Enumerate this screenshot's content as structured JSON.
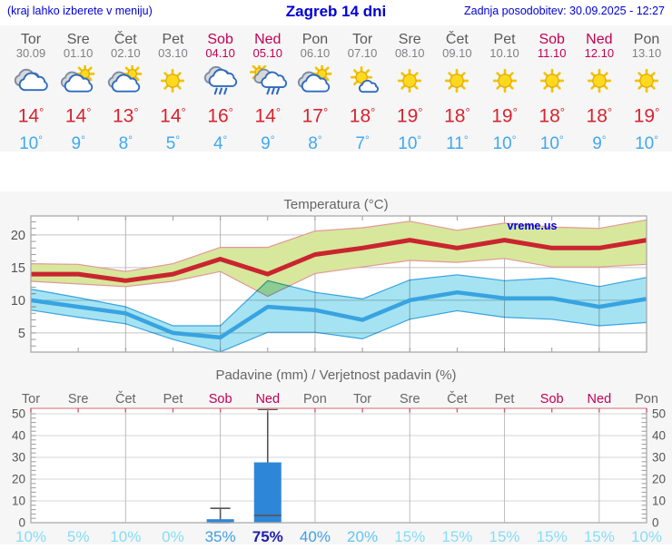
{
  "header": {
    "location_hint": "(kraj lahko izberete v meniju)",
    "title": "Zagreb 14 dni",
    "updated": "Zadnja posodobitev: 30.09.2025 - 12:27"
  },
  "forecast": {
    "days": [
      {
        "day": "Tor",
        "date": "30.09",
        "weekend": false,
        "icon": "cloudy",
        "tmax": 14,
        "tmin": 10
      },
      {
        "day": "Sre",
        "date": "01.10",
        "weekend": false,
        "icon": "partly-cloudy",
        "tmax": 14,
        "tmin": 9
      },
      {
        "day": "Čet",
        "date": "02.10",
        "weekend": false,
        "icon": "partly-cloudy",
        "tmax": 13,
        "tmin": 8
      },
      {
        "day": "Pet",
        "date": "03.10",
        "weekend": false,
        "icon": "sunny",
        "tmax": 14,
        "tmin": 5
      },
      {
        "day": "Sob",
        "date": "04.10",
        "weekend": true,
        "icon": "rain",
        "tmax": 16,
        "tmin": 4
      },
      {
        "day": "Ned",
        "date": "05.10",
        "weekend": true,
        "icon": "sun-rain",
        "tmax": 14,
        "tmin": 9
      },
      {
        "day": "Pon",
        "date": "06.10",
        "weekend": false,
        "icon": "partly-cloudy",
        "tmax": 17,
        "tmin": 8
      },
      {
        "day": "Tor",
        "date": "07.10",
        "weekend": false,
        "icon": "mostly-sunny",
        "tmax": 18,
        "tmin": 7
      },
      {
        "day": "Sre",
        "date": "08.10",
        "weekend": false,
        "icon": "sunny",
        "tmax": 19,
        "tmin": 10
      },
      {
        "day": "Čet",
        "date": "09.10",
        "weekend": false,
        "icon": "sunny",
        "tmax": 18,
        "tmin": 11
      },
      {
        "day": "Pet",
        "date": "10.10",
        "weekend": false,
        "icon": "sunny",
        "tmax": 19,
        "tmin": 10
      },
      {
        "day": "Sob",
        "date": "11.10",
        "weekend": true,
        "icon": "sunny",
        "tmax": 18,
        "tmin": 10
      },
      {
        "day": "Ned",
        "date": "12.10",
        "weekend": true,
        "icon": "sunny",
        "tmax": 18,
        "tmin": 9
      },
      {
        "day": "Pon",
        "date": "13.10",
        "weekend": false,
        "icon": "sunny",
        "tmax": 19,
        "tmin": 10
      }
    ]
  },
  "colors": {
    "header_text": "#0000d6",
    "weekend": "#c20052",
    "high_temp": "#d9232f",
    "low_temp": "#3fa9f0",
    "section_bg": "#f6f6f6"
  },
  "chart_data": [
    {
      "type": "area",
      "title": "Temperatura (°C)",
      "watermark": "vreme.us",
      "x_labels": [
        "Tor 30.09",
        "Sre 01.10",
        "Čet 02.10",
        "Pet 03.10",
        "Sob 04.10",
        "Ned 05.10",
        "Pon 06.10",
        "Tor 07.10",
        "Sre 08.10",
        "Čet 09.10",
        "Pet 10.10",
        "Sob 11.10",
        "Ned 12.10",
        "Pon 13.10"
      ],
      "y_ticks": [
        5,
        10,
        15,
        20
      ],
      "y_range": [
        2,
        22.9
      ],
      "grid": true,
      "series": [
        {
          "name": "max-temp-range",
          "kind": "band",
          "fill": "#d7e79b",
          "edge": "#e49797",
          "upper": [
            15.6,
            15.5,
            14.4,
            15.6,
            18.1,
            18.1,
            20.6,
            21.1,
            22.1,
            20.7,
            21.8,
            21.2,
            21.0,
            22.3
          ],
          "lower": [
            12.9,
            12.5,
            12.1,
            12.9,
            14.4,
            10.6,
            14.1,
            15.1,
            16.1,
            15.8,
            16.4,
            15.1,
            15.1,
            15.5
          ]
        },
        {
          "name": "max-temp",
          "kind": "line",
          "color": "#c9252f",
          "width": 5,
          "values": [
            14,
            14,
            13,
            14,
            16.3,
            14,
            17,
            18,
            19.2,
            18,
            19.2,
            18,
            18,
            19.2
          ]
        },
        {
          "name": "min-temp-range",
          "kind": "band",
          "fill": "#a5e3f2",
          "edge": "#38a3e1",
          "blend": "multiply",
          "upper": [
            11.7,
            10.4,
            9.0,
            6.1,
            6.1,
            13.0,
            11.2,
            10.2,
            13.1,
            13.9,
            13.0,
            13.4,
            12.1,
            13.5
          ],
          "lower": [
            8.5,
            7.4,
            6.4,
            4.0,
            2.1,
            5.1,
            5.1,
            4.1,
            7.1,
            8.4,
            7.4,
            7.1,
            6.1,
            6.6
          ]
        },
        {
          "name": "min-temp",
          "kind": "line",
          "color": "#38a3e1",
          "width": 4.5,
          "values": [
            10,
            9,
            8,
            5,
            4.3,
            9,
            8.5,
            7,
            10,
            11.2,
            10.3,
            10.3,
            9,
            10.2
          ]
        }
      ]
    },
    {
      "type": "bar",
      "title": "Padavine (mm) / Verjetnost padavin (%)",
      "categories": [
        "Tor",
        "Sre",
        "Čet",
        "Pet",
        "Sob",
        "Ned",
        "Pon",
        "Tor",
        "Sre",
        "Čet",
        "Pet",
        "Sob",
        "Ned",
        "Pon"
      ],
      "weekend_indices": [
        4,
        5,
        11,
        12
      ],
      "y_ticks": [
        0,
        10,
        20,
        30,
        40,
        50
      ],
      "y_max": 52.5,
      "bar_color": "#2e86d8",
      "values_mm": [
        0,
        0,
        0,
        0,
        1.6,
        27.7,
        0,
        0,
        0,
        0,
        0,
        0,
        0,
        0
      ],
      "range_low": [
        null,
        null,
        null,
        null,
        0,
        3.3,
        null,
        null,
        null,
        null,
        null,
        null,
        null,
        null
      ],
      "range_high": [
        null,
        null,
        null,
        null,
        6.6,
        52,
        null,
        null,
        null,
        null,
        null,
        null,
        null,
        null
      ],
      "probabilities": [
        "10%",
        "5%",
        "10%",
        "0%",
        "35%",
        "75%",
        "40%",
        "20%",
        "15%",
        "15%",
        "15%",
        "15%",
        "15%",
        "10%"
      ]
    }
  ]
}
